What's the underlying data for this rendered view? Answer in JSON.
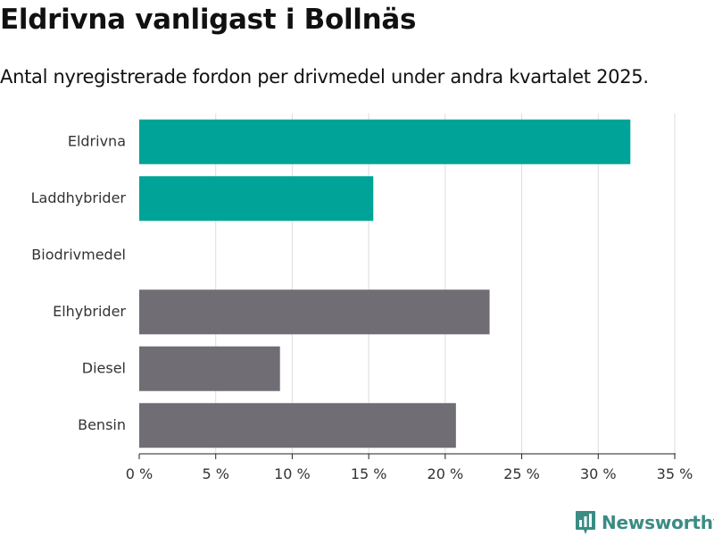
{
  "header": {
    "title": "Eldrivna vanligast i Bollnäs",
    "subtitle": "Antal nyregistrerade fordon per drivmedel under andra kvartalet 2025."
  },
  "brand": {
    "name": "Newsworthy",
    "color": "#3a8c84",
    "icon": "newsworthy-logo-icon"
  },
  "chart_data": {
    "type": "bar",
    "orientation": "horizontal",
    "categories": [
      "Eldrivna",
      "Laddhybrider",
      "Biodrivmedel",
      "Elhybrider",
      "Diesel",
      "Bensin"
    ],
    "values": [
      32.1,
      15.3,
      0,
      22.9,
      9.2,
      20.7
    ],
    "colors": [
      "#00a398",
      "#00a398",
      "#00a398",
      "#706d74",
      "#706d74",
      "#706d74"
    ],
    "xlim": [
      0,
      35
    ],
    "xticks": [
      0,
      5,
      10,
      15,
      20,
      25,
      30,
      35
    ],
    "xtick_labels": [
      "0 %",
      "5 %",
      "10 %",
      "15 %",
      "20 %",
      "25 %",
      "30 %",
      "35 %"
    ],
    "grid": "vertical",
    "legend": "none"
  }
}
